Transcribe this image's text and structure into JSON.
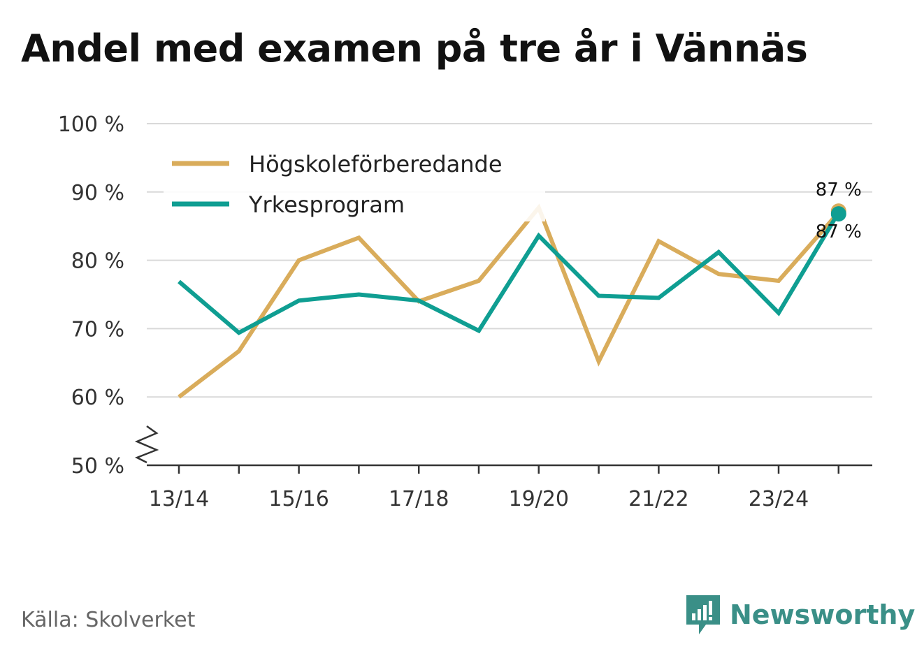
{
  "title": "Andel med examen på tre år i Vännäs",
  "source": "Källa: Skolverket",
  "brand": "Newsworthy",
  "chart_data": {
    "type": "line",
    "x": [
      "13/14",
      "14/15",
      "15/16",
      "16/17",
      "17/18",
      "18/19",
      "19/20",
      "20/21",
      "21/22",
      "22/23",
      "23/24",
      "24/25"
    ],
    "x_tick_labels": [
      "13/14",
      "15/16",
      "17/18",
      "19/20",
      "21/22",
      "23/24"
    ],
    "y_tick_labels": [
      "50 %",
      "60 %",
      "70 %",
      "80 %",
      "90 %",
      "100 %"
    ],
    "y_ticks": [
      50,
      60,
      70,
      80,
      90,
      100
    ],
    "ylim": [
      50,
      100
    ],
    "grid": true,
    "legend": "top-left",
    "series": [
      {
        "name": "Högskoleförberedande",
        "color": "#d9ac5b",
        "values": [
          60,
          66.7,
          80,
          83.3,
          74,
          77,
          87.7,
          65.2,
          82.8,
          78,
          77,
          87
        ],
        "end_label": "87 %"
      },
      {
        "name": "Yrkesprogram",
        "color": "#0f9e92",
        "values": [
          76.9,
          69.4,
          74.1,
          75,
          74.1,
          69.7,
          83.6,
          74.8,
          74.5,
          81.2,
          72.3,
          87
        ],
        "end_label": "87 %"
      }
    ]
  }
}
